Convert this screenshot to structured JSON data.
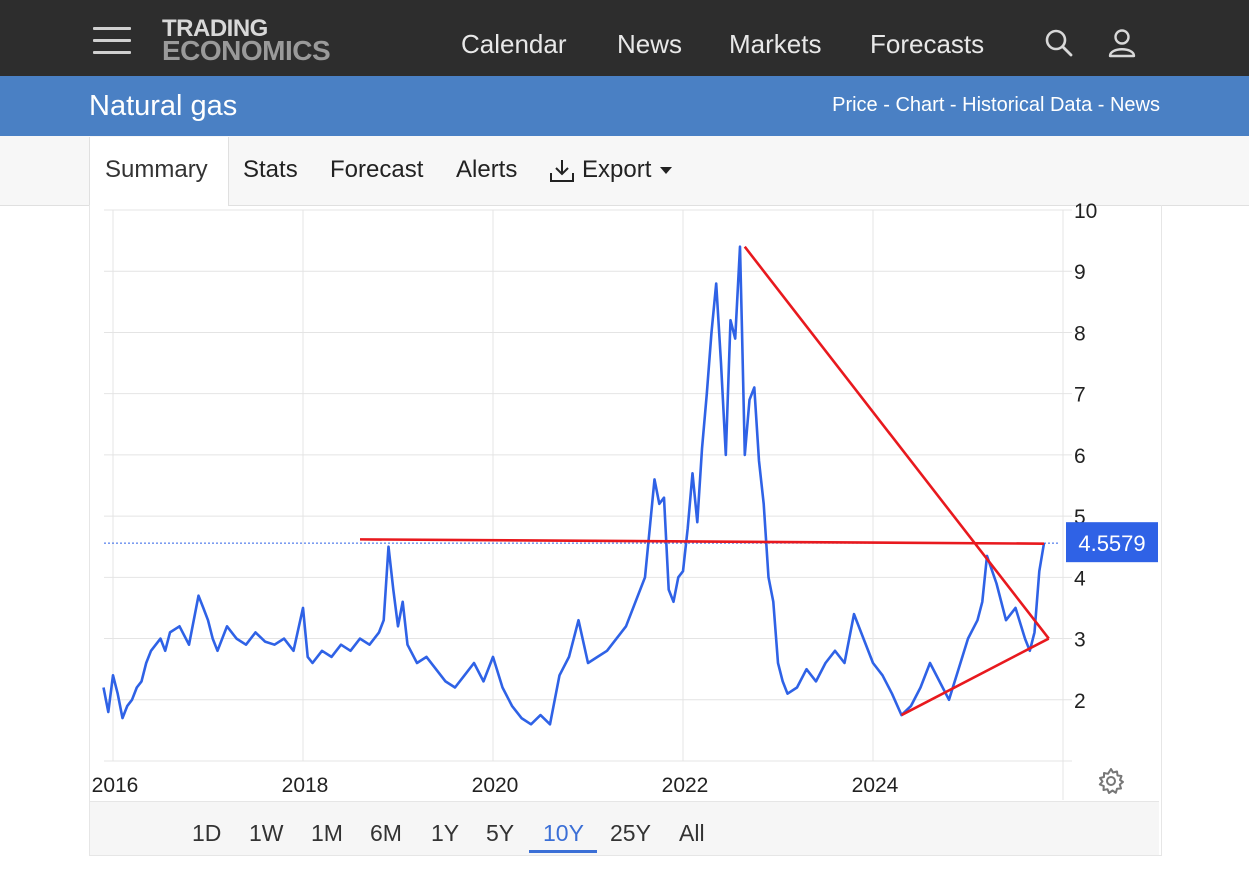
{
  "header": {
    "logo_line1": "TRADING",
    "logo_line2": "ECONOMICS",
    "nav": [
      "Calendar",
      "News",
      "Markets",
      "Forecasts"
    ]
  },
  "title_bar": {
    "title": "Natural gas",
    "links": [
      "Price",
      "Chart",
      "Historical Data",
      "News"
    ],
    "separator": " - "
  },
  "tabs": [
    "Summary",
    "Stats",
    "Forecast",
    "Alerts",
    "Export"
  ],
  "active_tab": "Summary",
  "ranges": [
    "1D",
    "1W",
    "1M",
    "6M",
    "1Y",
    "5Y",
    "10Y",
    "25Y",
    "All"
  ],
  "active_range": "10Y",
  "colors": {
    "topbar": "#2d2d2d",
    "bluebar": "#4a80c4",
    "series": "#2f62e6",
    "trendline": "#e8191e",
    "price_badge": "#2f62e6"
  },
  "icons": [
    "menu-icon",
    "search-icon",
    "user-icon",
    "download-icon",
    "caret-down-icon",
    "gear-icon"
  ],
  "chart_data": {
    "type": "line",
    "title": "",
    "xlabel": "",
    "ylabel": "",
    "x_tick_labels": [
      "2016",
      "2018",
      "2020",
      "2022",
      "2024"
    ],
    "x_ticks": [
      2016,
      2018,
      2020,
      2022,
      2024
    ],
    "y_ticks": [
      2,
      3,
      4,
      5,
      6,
      7,
      8,
      9,
      10
    ],
    "xlim": [
      2015.9,
      2025.9
    ],
    "ylim": [
      1,
      10
    ],
    "grid": true,
    "last_value": 4.5579,
    "last_value_label": "4.5579",
    "series": [
      {
        "x": [
          2015.9,
          2015.95,
          2016.0,
          2016.05,
          2016.1,
          2016.15,
          2016.2,
          2016.25,
          2016.3,
          2016.35,
          2016.4,
          2016.5,
          2016.55,
          2016.6,
          2016.7,
          2016.8,
          2016.9,
          2016.95,
          2017.0,
          2017.05,
          2017.1,
          2017.2,
          2017.3,
          2017.4,
          2017.5,
          2017.6,
          2017.7,
          2017.8,
          2017.9,
          2018.0,
          2018.05,
          2018.1,
          2018.2,
          2018.3,
          2018.4,
          2018.5,
          2018.6,
          2018.7,
          2018.8,
          2018.85,
          2018.9,
          2018.95,
          2019.0,
          2019.05,
          2019.1,
          2019.2,
          2019.3,
          2019.4,
          2019.5,
          2019.6,
          2019.7,
          2019.8,
          2019.9,
          2020.0,
          2020.1,
          2020.2,
          2020.3,
          2020.4,
          2020.5,
          2020.6,
          2020.7,
          2020.8,
          2020.9,
          2021.0,
          2021.1,
          2021.2,
          2021.3,
          2021.4,
          2021.5,
          2021.6,
          2021.7,
          2021.75,
          2021.8,
          2021.85,
          2021.9,
          2021.95,
          2022.0,
          2022.05,
          2022.1,
          2022.15,
          2022.2,
          2022.25,
          2022.3,
          2022.35,
          2022.4,
          2022.45,
          2022.5,
          2022.55,
          2022.6,
          2022.62,
          2022.65,
          2022.7,
          2022.75,
          2022.8,
          2022.85,
          2022.9,
          2022.95,
          2023.0,
          2023.05,
          2023.1,
          2023.2,
          2023.3,
          2023.4,
          2023.5,
          2023.6,
          2023.7,
          2023.8,
          2023.9,
          2024.0,
          2024.1,
          2024.2,
          2024.3,
          2024.4,
          2024.5,
          2024.6,
          2024.7,
          2024.8,
          2024.9,
          2025.0,
          2025.1,
          2025.15,
          2025.2,
          2025.3,
          2025.4,
          2025.5,
          2025.6,
          2025.65,
          2025.7,
          2025.75,
          2025.8
        ],
        "y": [
          2.2,
          1.8,
          2.4,
          2.1,
          1.7,
          1.9,
          2.0,
          2.2,
          2.3,
          2.6,
          2.8,
          3.0,
          2.8,
          3.1,
          3.2,
          2.9,
          3.7,
          3.5,
          3.3,
          3.0,
          2.8,
          3.2,
          3.0,
          2.9,
          3.1,
          2.95,
          2.9,
          3.0,
          2.8,
          3.5,
          2.7,
          2.6,
          2.8,
          2.7,
          2.9,
          2.8,
          3.0,
          2.9,
          3.1,
          3.3,
          4.5,
          3.8,
          3.2,
          3.6,
          2.9,
          2.6,
          2.7,
          2.5,
          2.3,
          2.2,
          2.4,
          2.6,
          2.3,
          2.7,
          2.2,
          1.9,
          1.7,
          1.6,
          1.75,
          1.6,
          2.4,
          2.7,
          3.3,
          2.6,
          2.7,
          2.8,
          3.0,
          3.2,
          3.6,
          4.0,
          5.6,
          5.2,
          5.3,
          3.8,
          3.6,
          4.0,
          4.1,
          4.8,
          5.7,
          4.9,
          6.1,
          7.0,
          8.0,
          8.8,
          7.5,
          6.0,
          8.2,
          7.9,
          9.4,
          8.1,
          6.0,
          6.9,
          7.1,
          5.9,
          5.2,
          4.0,
          3.6,
          2.6,
          2.3,
          2.1,
          2.2,
          2.5,
          2.3,
          2.6,
          2.8,
          2.6,
          3.4,
          3.0,
          2.6,
          2.4,
          2.1,
          1.75,
          1.9,
          2.2,
          2.6,
          2.3,
          2.0,
          2.5,
          3.0,
          3.3,
          3.6,
          4.35,
          3.9,
          3.3,
          3.5,
          3.0,
          2.8,
          3.1,
          4.1,
          4.5579
        ]
      }
    ],
    "annotations": [
      {
        "type": "trendline",
        "from": [
          2018.6,
          4.62
        ],
        "to": [
          2025.8,
          4.55
        ]
      },
      {
        "type": "trendline",
        "from": [
          2022.65,
          9.4
        ],
        "to": [
          2025.85,
          3.0
        ]
      },
      {
        "type": "trendline",
        "from": [
          2024.3,
          1.75
        ],
        "to": [
          2025.85,
          3.0
        ]
      }
    ]
  }
}
